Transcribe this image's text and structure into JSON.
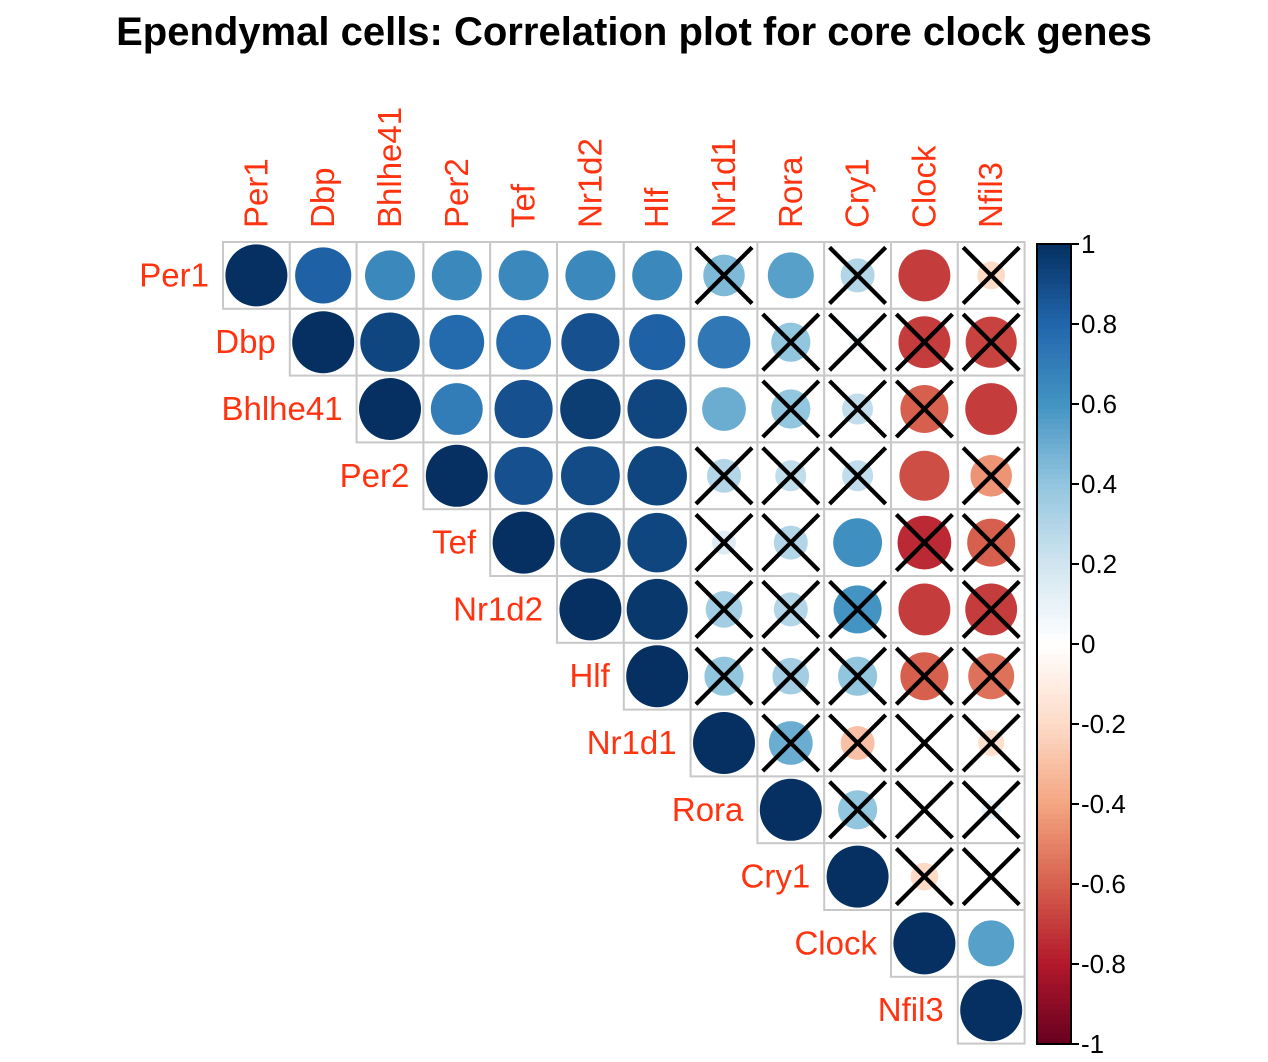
{
  "chart_data": {
    "type": "heatmap",
    "title": "Ependymal cells: Correlation plot for core clock genes",
    "genes": [
      "Per1",
      "Dbp",
      "Bhlhe41",
      "Per2",
      "Tef",
      "Nr1d2",
      "Hlf",
      "Nr1d1",
      "Rora",
      "Cry1",
      "Clock",
      "Nfil3"
    ],
    "layout": "upper-triangle",
    "glyph": "circle",
    "matrix": [
      [
        1.0,
        0.82,
        0.65,
        0.65,
        0.65,
        0.65,
        0.65,
        0.45,
        0.55,
        0.3,
        -0.7,
        -0.2
      ],
      [
        0.82,
        1.0,
        0.92,
        0.78,
        0.78,
        0.88,
        0.82,
        0.72,
        0.4,
        0.08,
        -0.7,
        -0.68
      ],
      [
        0.65,
        0.92,
        1.0,
        0.7,
        0.88,
        0.95,
        0.92,
        0.5,
        0.4,
        0.25,
        -0.6,
        -0.7
      ],
      [
        0.65,
        0.78,
        0.7,
        1.0,
        0.88,
        0.9,
        0.92,
        0.3,
        0.25,
        0.25,
        -0.65,
        -0.45
      ],
      [
        0.65,
        0.78,
        0.88,
        0.88,
        1.0,
        0.95,
        0.92,
        0.15,
        0.3,
        0.62,
        -0.75,
        -0.6
      ],
      [
        0.65,
        0.88,
        0.95,
        0.9,
        0.95,
        1.0,
        0.97,
        0.35,
        0.3,
        0.6,
        -0.7,
        -0.7
      ],
      [
        0.65,
        0.82,
        0.92,
        0.92,
        0.92,
        0.97,
        1.0,
        0.4,
        0.35,
        0.4,
        -0.6,
        -0.55
      ],
      [
        0.45,
        0.72,
        0.5,
        0.3,
        0.15,
        0.35,
        0.4,
        1.0,
        0.5,
        -0.3,
        0.0,
        -0.18
      ],
      [
        0.55,
        0.4,
        0.4,
        0.25,
        0.3,
        0.3,
        0.35,
        0.5,
        1.0,
        0.4,
        0.0,
        0.1
      ],
      [
        0.3,
        0.08,
        0.25,
        0.25,
        0.62,
        0.6,
        0.4,
        -0.3,
        0.4,
        1.0,
        -0.2,
        0.0
      ],
      [
        -0.7,
        -0.7,
        -0.6,
        -0.65,
        -0.75,
        -0.7,
        -0.6,
        0.0,
        0.0,
        -0.2,
        1.0,
        0.55
      ],
      [
        -0.2,
        -0.68,
        -0.7,
        -0.45,
        -0.6,
        -0.7,
        -0.55,
        -0.18,
        0.1,
        0.0,
        0.55,
        1.0
      ]
    ],
    "insignificant_pairs": [
      [
        "Per1",
        "Nr1d1"
      ],
      [
        "Per1",
        "Cry1"
      ],
      [
        "Per1",
        "Nfil3"
      ],
      [
        "Dbp",
        "Rora"
      ],
      [
        "Dbp",
        "Cry1"
      ],
      [
        "Dbp",
        "Clock"
      ],
      [
        "Dbp",
        "Nfil3"
      ],
      [
        "Bhlhe41",
        "Rora"
      ],
      [
        "Bhlhe41",
        "Cry1"
      ],
      [
        "Bhlhe41",
        "Clock"
      ],
      [
        "Per2",
        "Nr1d1"
      ],
      [
        "Per2",
        "Rora"
      ],
      [
        "Per2",
        "Cry1"
      ],
      [
        "Per2",
        "Nfil3"
      ],
      [
        "Tef",
        "Nr1d1"
      ],
      [
        "Tef",
        "Rora"
      ],
      [
        "Tef",
        "Clock"
      ],
      [
        "Tef",
        "Nfil3"
      ],
      [
        "Nr1d2",
        "Nr1d1"
      ],
      [
        "Nr1d2",
        "Rora"
      ],
      [
        "Nr1d2",
        "Cry1"
      ],
      [
        "Nr1d2",
        "Nfil3"
      ],
      [
        "Hlf",
        "Nr1d1"
      ],
      [
        "Hlf",
        "Rora"
      ],
      [
        "Hlf",
        "Cry1"
      ],
      [
        "Hlf",
        "Clock"
      ],
      [
        "Hlf",
        "Nfil3"
      ],
      [
        "Nr1d1",
        "Rora"
      ],
      [
        "Nr1d1",
        "Cry1"
      ],
      [
        "Nr1d1",
        "Clock"
      ],
      [
        "Nr1d1",
        "Nfil3"
      ],
      [
        "Rora",
        "Cry1"
      ],
      [
        "Rora",
        "Clock"
      ],
      [
        "Rora",
        "Nfil3"
      ],
      [
        "Cry1",
        "Clock"
      ],
      [
        "Cry1",
        "Nfil3"
      ]
    ],
    "colorbar": {
      "range": [
        -1,
        1
      ],
      "tick_values": [
        1,
        0.8,
        0.6,
        0.4,
        0.2,
        0,
        -0.2,
        -0.4,
        -0.6,
        -0.8,
        -1
      ],
      "tick_labels": [
        "1",
        "0.8",
        "0.6",
        "0.4",
        "0.2",
        "0",
        "-0.2",
        "-0.4",
        "-0.6",
        "-0.8",
        "-1"
      ],
      "placement": "right"
    },
    "colors": {
      "negative_end": "#67001f",
      "positive_end": "#053061",
      "label_color": "#ff3310",
      "grid_color": "#c8c8c8",
      "cross_color": "#000000"
    }
  }
}
